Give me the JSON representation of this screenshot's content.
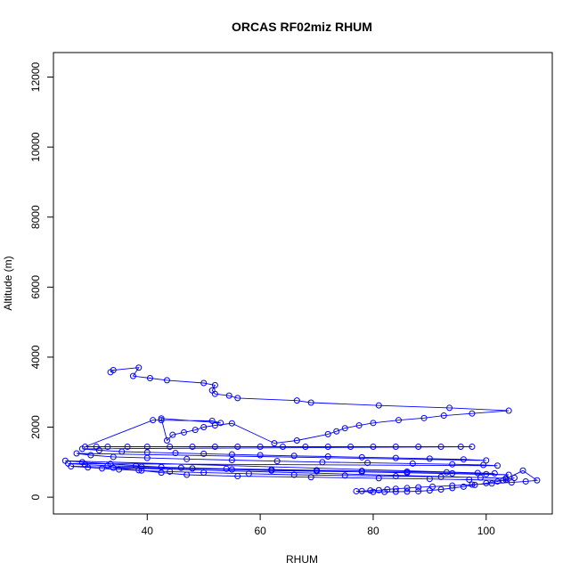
{
  "chart_data": {
    "type": "line",
    "title": "ORCAS RF02miz RHUM",
    "xlabel": "RHUM",
    "ylabel": "Altitude (m)",
    "xlim": [
      23.4,
      111.7
    ],
    "ylim": [
      -480,
      12700
    ],
    "x_ticks": [
      40,
      60,
      80,
      100
    ],
    "y_ticks": [
      0,
      2000,
      4000,
      6000,
      8000,
      10000,
      12000
    ],
    "grid": false,
    "marker": "open-circle",
    "colors": {
      "series": "#0000ff",
      "axis": "#000000",
      "background": "#ffffff"
    },
    "series": [
      {
        "x": [
          33.5,
          34.0,
          38.5,
          37.5,
          40.5,
          43.5,
          50.0,
          52.0,
          51.5,
          52.0,
          54.5,
          56.0,
          66.5,
          69.0,
          81.0,
          93.5,
          104.0,
          97.5,
          92.5,
          89.0,
          84.5,
          80.0,
          77.5,
          75.0,
          73.5,
          72.0,
          66.5,
          62.5,
          55.0,
          52.0,
          50.0,
          48.5,
          46.5,
          44.5,
          43.5,
          42.5,
          53.0,
          51.5,
          42.5,
          41.0,
          29.0,
          31.0,
          33.0,
          36.5,
          40.0,
          44.0,
          48.0,
          52.0,
          56.0,
          60.0,
          64.0,
          68.0,
          72.0,
          76.0,
          80.0,
          84.0,
          88.0,
          92.0,
          95.5,
          97.5,
          28.5,
          31.5,
          35.5,
          40.0,
          45.0,
          50.0,
          55.0,
          60.0,
          66.0,
          72.0,
          78.0,
          84.0,
          90.0,
          96.0,
          100.0,
          27.5,
          30.0,
          34.0,
          40.0,
          47.0,
          55.0,
          63.0,
          71.0,
          79.0,
          87.0,
          94.0,
          99.5,
          102.0,
          26.0,
          29.0,
          33.0,
          39.0,
          46.0,
          54.0,
          62.0,
          70.0,
          78.0,
          86.0,
          93.0,
          98.5,
          101.5,
          25.5,
          28.5,
          33.5,
          38.0,
          42.5,
          48.0,
          55.0,
          62.0,
          70.0,
          78.0,
          86.0,
          94.0,
          100.0,
          104.0,
          26.5,
          29.5,
          32.0,
          35.0,
          39.0,
          44.0,
          50.0,
          58.0,
          66.0,
          75.0,
          84.0,
          92.0,
          99.0,
          103.5,
          34.0,
          38.5,
          42.5,
          47.0,
          56.0,
          69.0,
          81.0,
          90.0,
          97.0,
          103.0,
          106.5,
          109.0,
          107.0,
          104.5,
          101.0,
          97.5,
          94.0,
          90.5,
          88.0,
          86.0,
          84.0,
          82.5,
          81.0,
          79.5,
          78.0,
          77.0,
          80.0,
          82.0,
          84.0,
          86.0,
          88.0,
          90.0,
          92.0,
          94.0,
          96.0,
          98.0,
          100.0,
          102.0,
          103.5,
          105.0
        ],
        "y": [
          3570,
          3630,
          3700,
          3460,
          3400,
          3340,
          3260,
          3200,
          3050,
          2950,
          2900,
          2830,
          2760,
          2700,
          2620,
          2550,
          2470,
          2390,
          2330,
          2260,
          2200,
          2120,
          2050,
          1970,
          1880,
          1800,
          1620,
          1540,
          2110,
          2050,
          2000,
          1920,
          1850,
          1780,
          1620,
          2250,
          2120,
          2180,
          2200,
          2200,
          1440,
          1440,
          1440,
          1440,
          1440,
          1440,
          1440,
          1440,
          1440,
          1440,
          1440,
          1440,
          1440,
          1440,
          1440,
          1440,
          1440,
          1440,
          1440,
          1440,
          1380,
          1340,
          1300,
          1280,
          1260,
          1240,
          1220,
          1200,
          1180,
          1160,
          1140,
          1120,
          1100,
          1080,
          1050,
          1250,
          1200,
          1150,
          1120,
          1090,
          1060,
          1030,
          1000,
          980,
          960,
          940,
          920,
          900,
          960,
          930,
          900,
          870,
          840,
          810,
          790,
          770,
          750,
          730,
          710,
          690,
          680,
          1040,
          1000,
          950,
          900,
          860,
          820,
          790,
          760,
          740,
          720,
          700,
          680,
          660,
          640,
          880,
          850,
          820,
          790,
          760,
          730,
          700,
          670,
          640,
          620,
          600,
          580,
          560,
          540,
          840,
          770,
          700,
          640,
          600,
          570,
          540,
          520,
          500,
          480,
          760,
          480,
          450,
          420,
          390,
          360,
          330,
          300,
          280,
          260,
          240,
          220,
          200,
          190,
          175,
          170,
          150,
          150,
          155,
          160,
          170,
          190,
          220,
          260,
          300,
          350,
          400,
          450,
          500,
          550
        ]
      }
    ]
  }
}
